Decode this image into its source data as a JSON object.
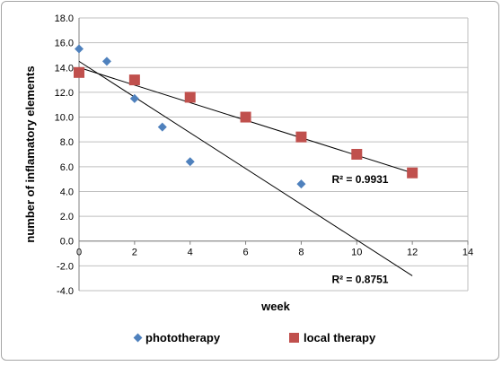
{
  "chart_data": {
    "type": "scatter",
    "title": "",
    "xlabel": "week",
    "ylabel": "number of inflamatory elements",
    "xlim": [
      0,
      14
    ],
    "ylim": [
      -4.0,
      18.0
    ],
    "x_ticks": [
      0,
      2,
      4,
      6,
      8,
      10,
      12,
      14
    ],
    "y_ticks": [
      -4.0,
      -2.0,
      0.0,
      2.0,
      4.0,
      6.0,
      8.0,
      10.0,
      12.0,
      14.0,
      16.0,
      18.0
    ],
    "grid": "horizontal",
    "legend_position": "bottom",
    "series": [
      {
        "name": "phototherapy",
        "marker": "diamond",
        "color": "#4f81bd",
        "x": [
          0,
          1,
          2,
          3,
          4,
          8
        ],
        "y": [
          15.5,
          14.5,
          11.5,
          9.2,
          6.4,
          4.6
        ],
        "trendline": {
          "type": "linear",
          "start": [
            0,
            14.5
          ],
          "end": [
            12,
            -2.8
          ],
          "r2_label": "R² = 0.8751"
        }
      },
      {
        "name": "local therapy",
        "marker": "square",
        "color": "#c0504d",
        "x": [
          0,
          2,
          4,
          6,
          8,
          10,
          12
        ],
        "y": [
          13.6,
          13.0,
          11.6,
          10.0,
          8.4,
          7.0,
          5.5
        ],
        "trendline": {
          "type": "linear",
          "start": [
            0,
            14.0
          ],
          "end": [
            12,
            5.5
          ],
          "r2_label": "R² = 0.9931"
        }
      }
    ]
  }
}
